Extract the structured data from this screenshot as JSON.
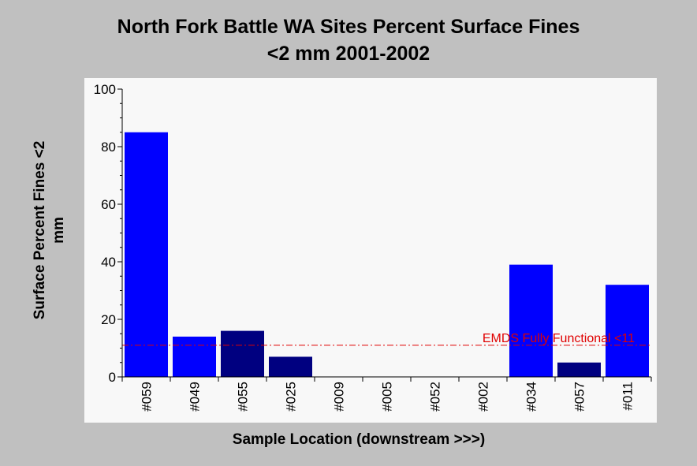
{
  "chart_data": {
    "type": "bar",
    "title_lines": [
      "North Fork Battle WA Sites Percent Surface Fines",
      "<2 mm 2001-2002"
    ],
    "xlabel": "Sample Location (downstream >>>)",
    "ylabel_lines": [
      "Surface Percent Fines <2",
      "mm"
    ],
    "categories": [
      "#059",
      "#049",
      "#055",
      "#025",
      "#009",
      "#005",
      "#052",
      "#002",
      "#034",
      "#057",
      "#011"
    ],
    "values": [
      85,
      14,
      16,
      7,
      0,
      0,
      0,
      0,
      39,
      5,
      32
    ],
    "bar_colors": [
      "#0000ff",
      "#0000ff",
      "#000080",
      "#000080",
      "#0000ff",
      "#0000ff",
      "#0000ff",
      "#0000ff",
      "#0000ff",
      "#000080",
      "#0000ff"
    ],
    "ylim": [
      0,
      100
    ],
    "yticks": [
      0,
      20,
      40,
      60,
      80,
      100
    ],
    "reference_line": {
      "value": 11,
      "label": "EMDS Fully Functional <11",
      "color": "#e00000"
    },
    "grid": false,
    "plot_background": "#f8f8f8"
  }
}
